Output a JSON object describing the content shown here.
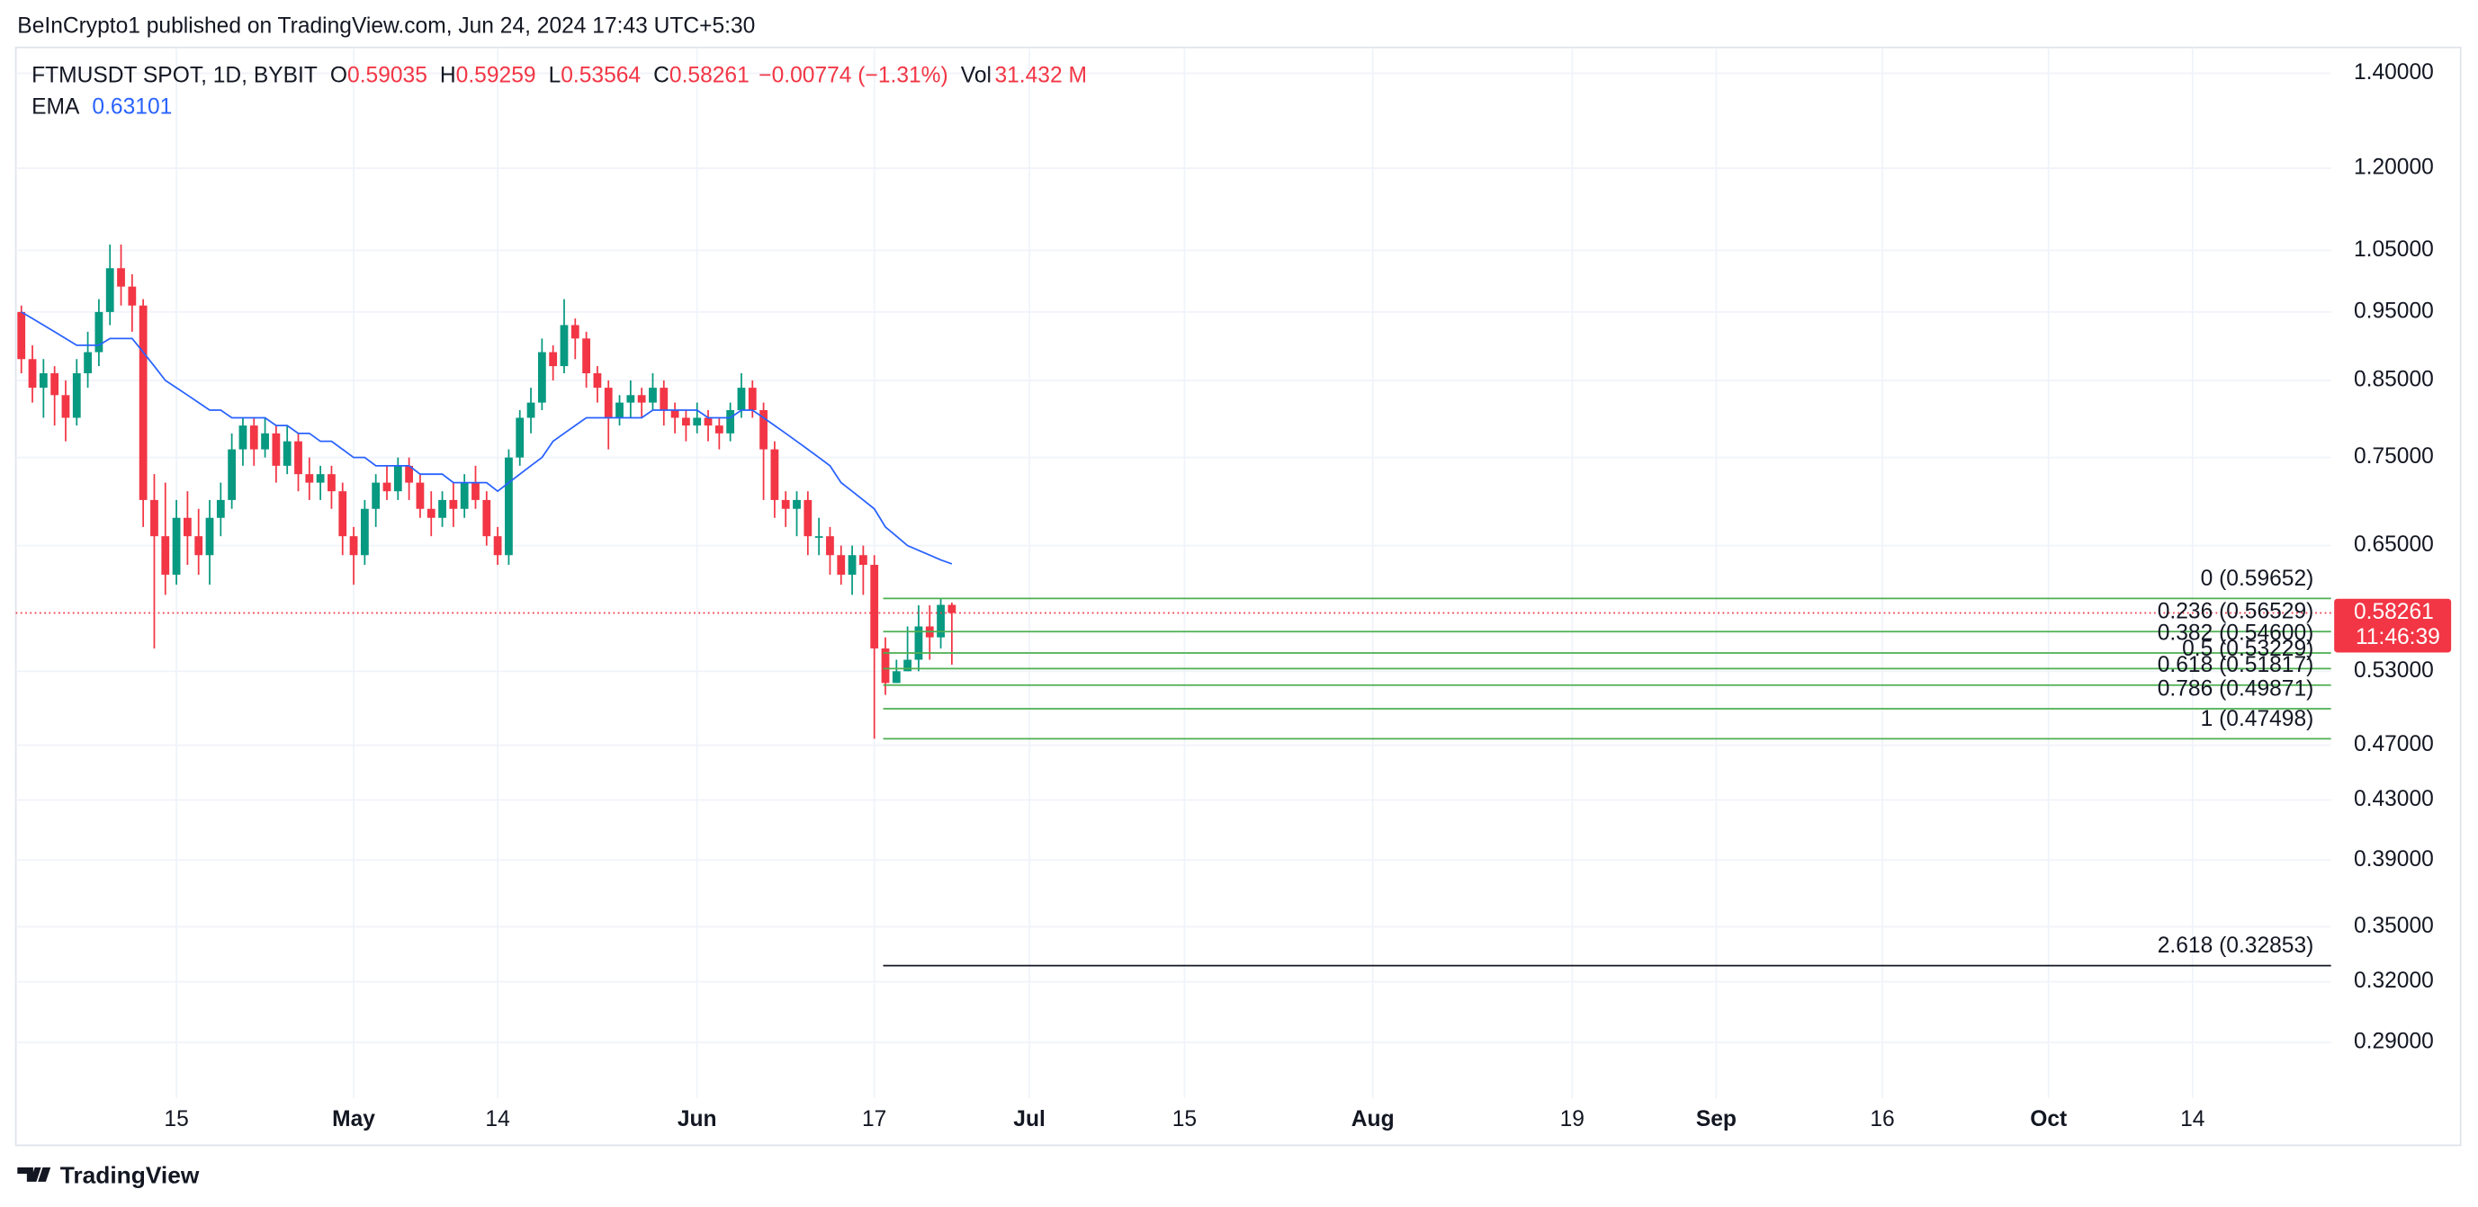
{
  "publisher": "BeInCrypto1 published on TradingView.com, Jun 24, 2024 17:43 UTC+5:30",
  "brand": "TradingView",
  "chart_data": {
    "type": "candlestick",
    "symbol": "FTMUSDT SPOT, 1D, BYBIT",
    "ohlc_legend": {
      "open_label": "O",
      "open": 0.59035,
      "high_label": "H",
      "high": 0.59259,
      "low_label": "L",
      "low": 0.53564,
      "close_label": "C",
      "close": 0.58261,
      "change": "−0.00774 (−1.31%)",
      "volume_label": "Vol",
      "volume": "31.432 M"
    },
    "countdown": "11:46:39",
    "up_color": "#089981",
    "down_color": "#f23645",
    "candles": {
      "open": [
        0.95,
        0.88,
        0.84,
        0.86,
        0.83,
        0.8,
        0.86,
        0.89,
        0.95,
        1.02,
        0.99,
        0.96,
        0.7,
        0.66,
        0.62,
        0.68,
        0.66,
        0.64,
        0.68,
        0.7,
        0.76,
        0.79,
        0.76,
        0.78,
        0.74,
        0.77,
        0.73,
        0.72,
        0.73,
        0.71,
        0.66,
        0.64,
        0.69,
        0.72,
        0.71,
        0.74,
        0.72,
        0.69,
        0.68,
        0.7,
        0.69,
        0.72,
        0.7,
        0.66,
        0.64,
        0.75,
        0.8,
        0.82,
        0.89,
        0.87,
        0.93,
        0.91,
        0.86,
        0.84,
        0.8,
        0.82,
        0.83,
        0.82,
        0.84,
        0.81,
        0.8,
        0.79,
        0.8,
        0.79,
        0.78,
        0.81,
        0.84,
        0.81,
        0.76,
        0.7,
        0.69,
        0.7,
        0.66,
        0.66,
        0.64,
        0.62,
        0.64,
        0.63,
        0.55,
        0.52,
        0.53,
        0.54,
        0.57,
        0.56,
        0.59035
      ],
      "high": [
        0.96,
        0.9,
        0.88,
        0.87,
        0.85,
        0.88,
        0.92,
        0.97,
        1.06,
        1.06,
        1.01,
        0.97,
        0.73,
        0.72,
        0.7,
        0.71,
        0.69,
        0.7,
        0.72,
        0.78,
        0.8,
        0.8,
        0.8,
        0.79,
        0.79,
        0.78,
        0.75,
        0.74,
        0.74,
        0.72,
        0.67,
        0.7,
        0.73,
        0.74,
        0.75,
        0.75,
        0.73,
        0.71,
        0.71,
        0.72,
        0.73,
        0.74,
        0.71,
        0.67,
        0.76,
        0.81,
        0.84,
        0.91,
        0.9,
        0.97,
        0.94,
        0.92,
        0.87,
        0.85,
        0.83,
        0.85,
        0.84,
        0.86,
        0.85,
        0.82,
        0.81,
        0.82,
        0.81,
        0.8,
        0.82,
        0.86,
        0.85,
        0.82,
        0.77,
        0.71,
        0.71,
        0.71,
        0.68,
        0.67,
        0.65,
        0.65,
        0.65,
        0.64,
        0.56,
        0.54,
        0.57,
        0.59,
        0.59,
        0.59652,
        0.59259
      ],
      "low": [
        0.86,
        0.82,
        0.8,
        0.79,
        0.77,
        0.79,
        0.84,
        0.87,
        0.93,
        0.96,
        0.92,
        0.67,
        0.55,
        0.6,
        0.61,
        0.63,
        0.62,
        0.61,
        0.66,
        0.69,
        0.74,
        0.74,
        0.75,
        0.72,
        0.73,
        0.71,
        0.7,
        0.7,
        0.69,
        0.64,
        0.61,
        0.63,
        0.67,
        0.7,
        0.7,
        0.7,
        0.68,
        0.66,
        0.67,
        0.67,
        0.68,
        0.69,
        0.65,
        0.63,
        0.63,
        0.74,
        0.78,
        0.81,
        0.85,
        0.86,
        0.88,
        0.84,
        0.82,
        0.76,
        0.79,
        0.8,
        0.8,
        0.81,
        0.79,
        0.78,
        0.77,
        0.78,
        0.77,
        0.76,
        0.77,
        0.8,
        0.8,
        0.7,
        0.68,
        0.67,
        0.66,
        0.64,
        0.64,
        0.62,
        0.61,
        0.6,
        0.6,
        0.47498,
        0.51,
        0.52,
        0.53,
        0.53,
        0.54,
        0.55,
        0.53564
      ],
      "close": [
        0.88,
        0.84,
        0.86,
        0.83,
        0.8,
        0.86,
        0.89,
        0.95,
        1.02,
        0.99,
        0.96,
        0.7,
        0.66,
        0.62,
        0.68,
        0.66,
        0.64,
        0.68,
        0.7,
        0.76,
        0.79,
        0.76,
        0.78,
        0.74,
        0.77,
        0.73,
        0.72,
        0.73,
        0.71,
        0.66,
        0.64,
        0.69,
        0.72,
        0.71,
        0.74,
        0.72,
        0.69,
        0.68,
        0.7,
        0.69,
        0.72,
        0.7,
        0.66,
        0.64,
        0.75,
        0.8,
        0.82,
        0.89,
        0.87,
        0.93,
        0.91,
        0.86,
        0.84,
        0.8,
        0.82,
        0.83,
        0.82,
        0.84,
        0.81,
        0.8,
        0.79,
        0.8,
        0.79,
        0.78,
        0.81,
        0.84,
        0.81,
        0.76,
        0.7,
        0.69,
        0.7,
        0.66,
        0.66,
        0.64,
        0.62,
        0.64,
        0.63,
        0.55,
        0.52,
        0.53,
        0.54,
        0.57,
        0.56,
        0.59035,
        0.58261
      ]
    },
    "ema": {
      "name": "EMA",
      "color": "#2962ff",
      "values": [
        0.95,
        0.94,
        0.93,
        0.92,
        0.91,
        0.9,
        0.9,
        0.9,
        0.91,
        0.91,
        0.91,
        0.89,
        0.87,
        0.85,
        0.84,
        0.83,
        0.82,
        0.81,
        0.81,
        0.8,
        0.8,
        0.8,
        0.8,
        0.79,
        0.79,
        0.78,
        0.78,
        0.77,
        0.77,
        0.76,
        0.75,
        0.75,
        0.74,
        0.74,
        0.74,
        0.74,
        0.73,
        0.73,
        0.73,
        0.72,
        0.72,
        0.72,
        0.72,
        0.71,
        0.72,
        0.73,
        0.74,
        0.75,
        0.77,
        0.78,
        0.79,
        0.8,
        0.8,
        0.8,
        0.8,
        0.8,
        0.8,
        0.81,
        0.81,
        0.81,
        0.81,
        0.81,
        0.8,
        0.8,
        0.8,
        0.81,
        0.81,
        0.8,
        0.79,
        0.78,
        0.77,
        0.76,
        0.75,
        0.74,
        0.72,
        0.71,
        0.7,
        0.69,
        0.67,
        0.66,
        0.65,
        0.645,
        0.64,
        0.635,
        0.63101
      ]
    },
    "fib_color": "#4caf50",
    "fib_levels": [
      {
        "label": "0 (0.59652)",
        "value": 0.59652
      },
      {
        "label": "0.236 (0.56529)",
        "value": 0.56529
      },
      {
        "label": "0.382 (0.54600)",
        "value": 0.546
      },
      {
        "label": "0.5 (0.53229)",
        "value": 0.53229
      },
      {
        "label": "0.618 (0.51817)",
        "value": 0.51817
      },
      {
        "label": "0.786 (0.49871)",
        "value": 0.49871
      },
      {
        "label": "1 (0.47498)",
        "value": 0.47498
      }
    ],
    "extension_level": {
      "label": "2.618 (0.32853)",
      "value": 0.32853,
      "color": "#131722"
    },
    "log_scale": true,
    "grid": true,
    "xlim": [
      -0.5,
      208.5
    ],
    "ylim": [
      0.265,
      1.46
    ],
    "xticks": [
      {
        "value": 14,
        "label": "15"
      },
      {
        "value": 30,
        "label": "May"
      },
      {
        "value": 43,
        "label": "14"
      },
      {
        "value": 61,
        "label": "Jun"
      },
      {
        "value": 77,
        "label": "17"
      },
      {
        "value": 91,
        "label": "Jul"
      },
      {
        "value": 105,
        "label": "15"
      },
      {
        "value": 122,
        "label": "Aug"
      },
      {
        "value": 140,
        "label": "19"
      },
      {
        "value": 153,
        "label": "Sep"
      },
      {
        "value": 168,
        "label": "16"
      },
      {
        "value": 183,
        "label": "Oct"
      },
      {
        "value": 196,
        "label": "14"
      }
    ],
    "yticks": [
      {
        "value": 1.4,
        "label": "1.40000"
      },
      {
        "value": 1.2,
        "label": "1.20000"
      },
      {
        "value": 1.05,
        "label": "1.05000"
      },
      {
        "value": 0.95,
        "label": "0.95000"
      },
      {
        "value": 0.85,
        "label": "0.85000"
      },
      {
        "value": 0.75,
        "label": "0.75000"
      },
      {
        "value": 0.65,
        "label": "0.65000"
      },
      {
        "value": 0.53,
        "label": "0.53000"
      },
      {
        "value": 0.47,
        "label": "0.47000"
      },
      {
        "value": 0.43,
        "label": "0.43000"
      },
      {
        "value": 0.39,
        "label": "0.39000"
      },
      {
        "value": 0.35,
        "label": "0.35000"
      },
      {
        "value": 0.32,
        "label": "0.32000"
      },
      {
        "value": 0.29,
        "label": "0.29000"
      }
    ]
  }
}
